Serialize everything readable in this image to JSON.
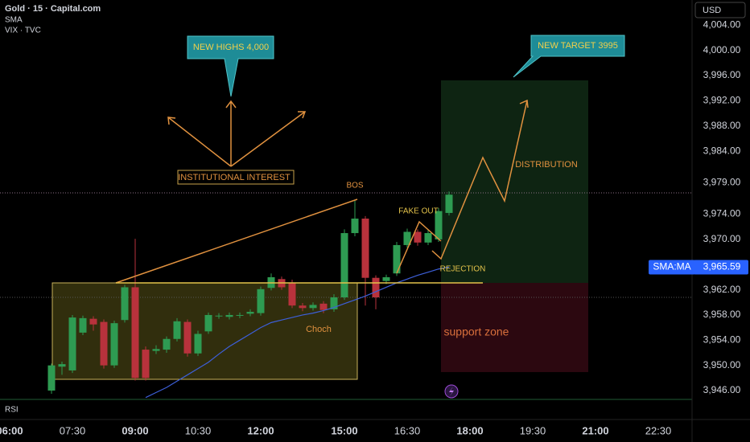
{
  "chart_data": {
    "type": "candlestick",
    "title": "Gold · 15 · Capital.com",
    "indicator_labels": [
      "VIX · TVC"
    ],
    "currency": "USD",
    "pane": "RSI",
    "up_color": "#2e9b52",
    "down_color": "#b8323c",
    "categories": [
      "06:00",
      null,
      null,
      null,
      null,
      null,
      "07:30",
      null,
      null,
      null,
      null,
      null,
      "09:00",
      null,
      null,
      null,
      null,
      null,
      "10:30",
      null,
      null,
      null,
      null,
      null,
      "12:00",
      null,
      null,
      null,
      null,
      null,
      null,
      null,
      "15:00",
      null,
      null,
      null,
      null,
      null,
      "16:30",
      null,
      null,
      null,
      null,
      null,
      "18:00",
      null,
      null,
      null,
      null,
      null,
      "19:30",
      null,
      null,
      null,
      null,
      null,
      "21:00",
      null,
      null,
      null,
      null,
      null,
      "22:30",
      null,
      null,
      null
    ],
    "open": [
      null,
      null,
      null,
      null,
      3946.0,
      3949.8,
      3949.2,
      3955.2,
      3957.4,
      3956.9,
      3950.0,
      3957.2,
      3962.4,
      3952.5,
      3952.3,
      3952.5,
      3954.2,
      3956.9,
      3951.9,
      3955.4,
      3957.8,
      3957.7,
      3957.9,
      3958.2,
      3958.3,
      3962.3,
      3963.7,
      3963.1,
      3959.5,
      3959.1,
      3959.8,
      3958.9,
      3960.8,
      3971.0,
      3973.3,
      3963.9,
      3963.4,
      3964.6,
      3969.1,
      3971.2,
      3969.5,
      3970.0,
      3974.2,
      null,
      null,
      null,
      null,
      null,
      null,
      null,
      null,
      null,
      null,
      null,
      null,
      null,
      null,
      null,
      null,
      null,
      null,
      null,
      null,
      null,
      null,
      null
    ],
    "high": [
      null,
      null,
      null,
      null,
      3950.3,
      3950.6,
      3958.0,
      3957.9,
      3957.8,
      3957.3,
      3957.1,
      3962.8,
      3970.1,
      3953.0,
      3953.2,
      3954.6,
      3957.5,
      3957.3,
      3955.5,
      3958.4,
      3958.3,
      3958.4,
      3958.4,
      3958.9,
      3962.5,
      3964.6,
      3964.1,
      3963.6,
      3959.9,
      3960.0,
      3960.2,
      3961.3,
      3971.6,
      3976.3,
      3973.7,
      3964.3,
      3964.4,
      3969.6,
      3971.7,
      3971.6,
      3971.5,
      3975.0,
      3977.6,
      null,
      null,
      null,
      null,
      null,
      null,
      null,
      null,
      null,
      null,
      null,
      null,
      null,
      null,
      null,
      null,
      null,
      null,
      null,
      null,
      null,
      null,
      null
    ],
    "low": [
      null,
      null,
      null,
      null,
      3945.5,
      3948.5,
      3948.8,
      3954.8,
      3955.5,
      3949.5,
      3949.6,
      3956.8,
      3947.6,
      3947.6,
      3951.8,
      3952.0,
      3953.8,
      3951.4,
      3951.5,
      3955.0,
      3957.4,
      3957.3,
      3957.5,
      3957.8,
      3957.9,
      3961.9,
      3962.0,
      3959.1,
      3958.6,
      3958.7,
      3958.3,
      3958.5,
      3960.4,
      3970.5,
      3959.5,
      3958.9,
      3962.9,
      3964.2,
      3968.7,
      3969.0,
      3969.1,
      3969.6,
      3973.8,
      null,
      null,
      null,
      null,
      null,
      null,
      null,
      null,
      null,
      null,
      null,
      null,
      null,
      null,
      null,
      null,
      null,
      null,
      null,
      null,
      null,
      null,
      null
    ],
    "close": [
      null,
      null,
      null,
      null,
      3950.0,
      3950.2,
      3957.6,
      3957.5,
      3956.5,
      3950.0,
      3956.7,
      3962.4,
      3948.0,
      3948.0,
      3952.6,
      3954.2,
      3957.0,
      3951.9,
      3955.0,
      3958.0,
      3957.9,
      3958.0,
      3958.0,
      3958.5,
      3962.1,
      3964.0,
      3962.4,
      3959.5,
      3959.1,
      3959.6,
      3958.8,
      3960.8,
      3971.0,
      3973.3,
      3963.9,
      3960.8,
      3964.0,
      3969.1,
      3971.2,
      3969.5,
      3971.0,
      3974.5,
      3977.1,
      null,
      null,
      null,
      null,
      null,
      null,
      null,
      null,
      null,
      null,
      null,
      null,
      null,
      null,
      null,
      null,
      null,
      null,
      null,
      null,
      null,
      null,
      null
    ],
    "series": [
      {
        "name": "SMA",
        "color": "#3d5fd9",
        "values": [
          null,
          null,
          null,
          null,
          null,
          null,
          null,
          null,
          null,
          null,
          null,
          null,
          null,
          3944.9,
          3945.7,
          3946.5,
          3947.5,
          3948.5,
          3949.5,
          3950.5,
          3951.8,
          3953.0,
          3954.0,
          3955.0,
          3956.0,
          3956.8,
          3957.2,
          3957.6,
          3958.0,
          3958.3,
          3958.7,
          3959.2,
          3959.8,
          3960.4,
          3961.0,
          3961.7,
          3962.4,
          3963.1,
          3963.7,
          3964.3,
          3964.8,
          3965.3,
          3965.6,
          null,
          null,
          null,
          null,
          null,
          null,
          null,
          null,
          null,
          null,
          null,
          null,
          null,
          null,
          null,
          null,
          null,
          null,
          null,
          null,
          null,
          null,
          null
        ]
      }
    ],
    "price_label": {
      "name": "SMA:MA",
      "value": {
        "value": 3965.59,
        "label": "3,965.59"
      }
    },
    "ylim": [
      3944.6,
      4008
    ],
    "yticks": [
      {
        "value": 4004,
        "label": "4,004.00"
      },
      {
        "value": 4000,
        "label": "4,000.00"
      },
      {
        "value": 3996,
        "label": "3,996.00"
      },
      {
        "value": 3992,
        "label": "3,992.00"
      },
      {
        "value": 3988,
        "label": "3,988.00"
      },
      {
        "value": 3984,
        "label": "3,984.00"
      },
      {
        "value": 3979,
        "label": "3,979.00"
      },
      {
        "value": 3974,
        "label": "3,974.00"
      },
      {
        "value": 3970,
        "label": "3,970.00"
      },
      {
        "value": 3962,
        "label": "3,962.00"
      },
      {
        "value": 3958,
        "label": "3,958.00"
      },
      {
        "value": 3954,
        "label": "3,954.00"
      },
      {
        "value": 3950,
        "label": "3,950.00"
      },
      {
        "value": 3946,
        "label": "3,946.00"
      }
    ],
    "annotations": [
      "NEW HIGHS 4,000",
      "NEW TARGET 3995",
      "INSTITUTIONAL INTEREST",
      "BOS",
      "FAKE OUT",
      "DISTRIBUTION",
      "REJECTION",
      "Choch",
      "support zone"
    ]
  }
}
